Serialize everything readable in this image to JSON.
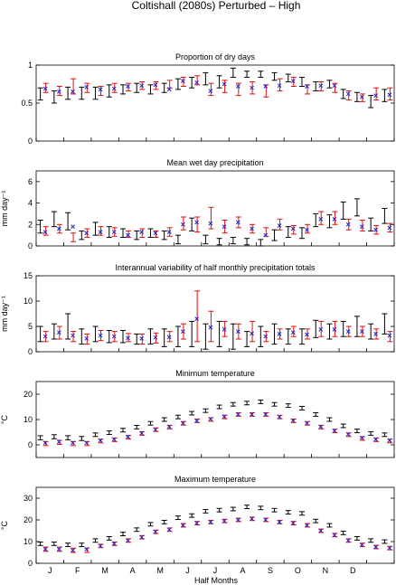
{
  "title": "Coltishall (2080s) Perturbed – High",
  "colors": {
    "black_series": "#000000",
    "red_series": "#dd1111",
    "blue_series": "#2222cc"
  },
  "xaxis": {
    "label": "Half Months",
    "month_labels": [
      "J",
      "F",
      "M",
      "A",
      "M",
      "J",
      "J",
      "A",
      "S",
      "O",
      "N",
      "D"
    ]
  },
  "chart_data": [
    {
      "type": "errorbar",
      "title": "Proportion of dry days",
      "ylabel": "",
      "ylim": [
        0,
        1
      ],
      "yticks": [
        0,
        0.5,
        1
      ],
      "ytick_labels": [
        "0",
        "0.5",
        "1"
      ],
      "series": [
        {
          "values": [
            0.62,
            0.58,
            0.63,
            0.63,
            0.63,
            0.66,
            0.68,
            0.7,
            0.68,
            0.7,
            0.75,
            0.77,
            0.82,
            0.78,
            0.9,
            0.88,
            0.88,
            0.85,
            0.83,
            0.78,
            0.72,
            0.75,
            0.62,
            0.58,
            0.52,
            0.6
          ],
          "low": [
            0.54,
            0.5,
            0.55,
            0.55,
            0.55,
            0.58,
            0.62,
            0.64,
            0.62,
            0.64,
            0.68,
            0.7,
            0.74,
            0.7,
            0.84,
            0.84,
            0.84,
            0.8,
            0.78,
            0.72,
            0.66,
            0.7,
            0.56,
            0.52,
            0.44,
            0.52
          ],
          "high": [
            0.7,
            0.66,
            0.71,
            0.71,
            0.71,
            0.74,
            0.74,
            0.76,
            0.74,
            0.76,
            0.82,
            0.84,
            0.9,
            0.86,
            0.96,
            0.92,
            0.92,
            0.9,
            0.88,
            0.84,
            0.78,
            0.8,
            0.68,
            0.64,
            0.6,
            0.68
          ]
        },
        {
          "values": [
            0.7,
            0.66,
            0.72,
            0.7,
            0.66,
            0.7,
            0.71,
            0.73,
            0.73,
            0.75,
            0.78,
            0.8,
            0.68,
            0.72,
            0.68,
            0.7,
            0.66,
            0.74,
            0.78,
            0.68,
            0.72,
            0.7,
            0.6,
            0.57,
            0.62,
            0.62
          ],
          "low": [
            0.64,
            0.6,
            0.62,
            0.64,
            0.6,
            0.64,
            0.66,
            0.68,
            0.68,
            0.7,
            0.72,
            0.74,
            0.6,
            0.64,
            0.6,
            0.62,
            0.58,
            0.66,
            0.72,
            0.62,
            0.66,
            0.64,
            0.54,
            0.52,
            0.54,
            0.54
          ],
          "high": [
            0.76,
            0.72,
            0.82,
            0.76,
            0.72,
            0.76,
            0.76,
            0.78,
            0.78,
            0.8,
            0.84,
            0.86,
            0.76,
            0.8,
            0.76,
            0.78,
            0.74,
            0.82,
            0.84,
            0.74,
            0.78,
            0.76,
            0.66,
            0.62,
            0.7,
            0.7
          ]
        },
        {
          "values": [
            0.69,
            0.65,
            0.65,
            0.71,
            0.68,
            0.69,
            0.72,
            0.73,
            0.74,
            0.68,
            0.79,
            0.77,
            0.66,
            0.75,
            0.72,
            0.7,
            0.72,
            0.73,
            0.79,
            0.72,
            0.73,
            0.73,
            0.62,
            0.58,
            0.6,
            0.61
          ]
        }
      ]
    },
    {
      "type": "errorbar",
      "title": "Mean wet day precipitation",
      "ylabel": "mm day⁻¹",
      "ylim": [
        0,
        7
      ],
      "yticks": [
        0,
        2,
        4,
        6
      ],
      "ytick_labels": [
        "0",
        "2",
        "4",
        "6"
      ],
      "series": [
        {
          "values": [
            1.8,
            2.5,
            2.3,
            1.0,
            1.6,
            1.3,
            1.2,
            1.0,
            1.2,
            1.0,
            0.6,
            2.0,
            0.6,
            0.4,
            0.5,
            0.4,
            0.3,
            1.0,
            1.3,
            1.2,
            2.4,
            2.3,
            3.3,
            3.6,
            2.0,
            2.8
          ],
          "low": [
            1.2,
            1.8,
            1.5,
            0.6,
            1.0,
            0.8,
            0.8,
            0.6,
            0.8,
            0.6,
            0.2,
            1.4,
            0.2,
            0.1,
            0.2,
            0.1,
            0.0,
            0.5,
            0.8,
            0.7,
            1.8,
            1.7,
            2.5,
            2.8,
            1.4,
            2.1
          ],
          "high": [
            2.4,
            3.2,
            3.1,
            1.4,
            2.2,
            1.8,
            1.6,
            1.4,
            1.6,
            1.4,
            1.0,
            2.6,
            1.0,
            0.7,
            0.8,
            0.7,
            0.6,
            1.5,
            1.8,
            1.7,
            3.0,
            2.9,
            4.1,
            4.4,
            2.6,
            3.5
          ]
        },
        {
          "values": [
            1.4,
            1.6,
            0.8,
            1.2,
            1.4,
            1.3,
            1.1,
            1.2,
            1.1,
            1.3,
            2.1,
            2.0,
            2.6,
            1.8,
            2.2,
            1.6,
            1.3,
            2.0,
            1.5,
            1.6,
            2.6,
            2.6,
            2.0,
            1.9,
            1.5,
            1.7
          ],
          "low": [
            1.0,
            1.2,
            0.4,
            0.8,
            1.0,
            0.9,
            0.8,
            0.8,
            0.8,
            0.9,
            1.5,
            1.3,
            1.6,
            1.2,
            1.7,
            1.2,
            0.9,
            1.5,
            1.1,
            1.2,
            2.0,
            2.0,
            1.5,
            1.4,
            1.1,
            1.3
          ],
          "high": [
            1.8,
            2.0,
            1.2,
            1.6,
            1.8,
            1.7,
            1.4,
            1.6,
            1.4,
            1.7,
            2.7,
            2.7,
            3.6,
            2.4,
            2.7,
            2.0,
            1.7,
            2.5,
            1.9,
            2.0,
            3.2,
            3.2,
            2.5,
            2.4,
            1.9,
            2.1
          ]
        },
        {
          "values": [
            1.3,
            1.6,
            1.8,
            1.2,
            1.3,
            1.3,
            1.0,
            1.3,
            1.2,
            1.3,
            2.0,
            2.2,
            2.1,
            1.8,
            2.2,
            1.6,
            1.0,
            1.9,
            1.6,
            1.5,
            2.5,
            2.5,
            2.0,
            1.8,
            1.5,
            1.7
          ]
        }
      ]
    },
    {
      "type": "errorbar",
      "title": "Interannual variability of half monthly precipitation totals",
      "ylabel": "mm day⁻¹",
      "ylim": [
        0,
        15
      ],
      "yticks": [
        0,
        5,
        10,
        15
      ],
      "ytick_labels": [
        "0",
        "5",
        "10",
        "15"
      ],
      "series": [
        {
          "values": [
            3.5,
            4.0,
            5.0,
            3.0,
            3.5,
            3.0,
            3.0,
            2.5,
            3.0,
            2.8,
            3.0,
            3.5,
            3.0,
            3.5,
            3.0,
            2.5,
            3.0,
            3.5,
            3.0,
            3.0,
            4.5,
            4.0,
            4.5,
            5.0,
            4.0,
            5.5
          ],
          "low": [
            2.0,
            2.5,
            2.5,
            1.5,
            2.0,
            1.8,
            1.8,
            1.5,
            1.5,
            1.0,
            1.0,
            1.0,
            0.5,
            1.0,
            0.5,
            1.0,
            1.0,
            1.5,
            1.5,
            1.5,
            2.8,
            2.5,
            3.0,
            3.0,
            2.5,
            3.5
          ],
          "high": [
            5.0,
            5.5,
            7.5,
            4.5,
            5.0,
            4.2,
            4.2,
            3.5,
            4.5,
            4.5,
            5.0,
            6.0,
            5.5,
            6.0,
            5.5,
            4.0,
            5.0,
            5.5,
            4.5,
            4.5,
            6.2,
            5.5,
            6.0,
            7.0,
            5.5,
            7.5
          ]
        },
        {
          "values": [
            3.0,
            3.8,
            3.0,
            2.5,
            3.2,
            3.0,
            2.8,
            2.5,
            2.7,
            3.0,
            4.0,
            7.0,
            5.0,
            4.5,
            4.0,
            3.5,
            3.0,
            3.5,
            4.0,
            3.5,
            4.5,
            4.5,
            4.0,
            4.0,
            3.5,
            3.0
          ],
          "low": [
            2.0,
            2.5,
            2.0,
            1.5,
            2.2,
            2.0,
            2.0,
            1.5,
            1.7,
            2.0,
            2.5,
            2.0,
            2.0,
            3.0,
            2.5,
            2.0,
            2.0,
            2.5,
            3.0,
            2.5,
            3.0,
            3.0,
            3.0,
            3.0,
            2.5,
            2.0
          ],
          "high": [
            4.0,
            5.0,
            4.0,
            3.5,
            4.2,
            4.0,
            3.6,
            3.5,
            3.7,
            4.0,
            5.5,
            12.0,
            8.0,
            6.0,
            5.5,
            6.0,
            4.0,
            4.5,
            5.0,
            4.5,
            6.0,
            6.0,
            5.0,
            5.0,
            4.5,
            4.0
          ]
        },
        {
          "values": [
            3.0,
            3.8,
            3.2,
            2.6,
            3.2,
            3.0,
            2.7,
            2.6,
            2.8,
            2.9,
            4.0,
            6.5,
            4.8,
            4.4,
            4.0,
            3.6,
            3.0,
            3.5,
            3.8,
            3.4,
            4.4,
            4.4,
            4.0,
            4.0,
            3.5,
            3.2
          ]
        }
      ]
    },
    {
      "type": "errorbar",
      "title": "Minimum temperature",
      "ylabel": "°C",
      "ylim": [
        -5,
        25
      ],
      "yticks": [
        0,
        10,
        20
      ],
      "ytick_labels": [
        "0",
        "10",
        "20"
      ],
      "series": [
        {
          "values": [
            2.8,
            3.2,
            2.8,
            2.5,
            4.0,
            4.8,
            5.8,
            7.0,
            8.5,
            10.0,
            11.0,
            12.5,
            13.5,
            15.0,
            16.0,
            16.5,
            17.0,
            16.0,
            15.5,
            14.5,
            12.0,
            10.0,
            7.5,
            5.5,
            4.5,
            4.0
          ],
          "low": [
            2.0,
            2.4,
            2.0,
            1.7,
            3.3,
            4.1,
            5.1,
            6.3,
            7.8,
            9.3,
            10.3,
            11.8,
            12.8,
            14.3,
            15.3,
            15.8,
            16.3,
            15.3,
            14.8,
            13.8,
            11.3,
            9.3,
            6.8,
            4.8,
            3.8,
            3.3
          ],
          "high": [
            3.6,
            4.0,
            3.6,
            3.3,
            4.7,
            5.5,
            6.5,
            7.7,
            9.2,
            10.7,
            11.7,
            13.2,
            14.2,
            15.7,
            16.7,
            17.2,
            17.7,
            16.7,
            16.2,
            15.2,
            12.7,
            10.7,
            8.2,
            6.2,
            5.2,
            4.7
          ]
        },
        {
          "values": [
            0.5,
            1.0,
            0.5,
            0.5,
            1.5,
            2.0,
            3.0,
            4.5,
            6.0,
            7.0,
            8.5,
            9.5,
            10.0,
            11.0,
            12.0,
            12.0,
            12.0,
            11.0,
            9.5,
            8.5,
            7.0,
            5.5,
            4.0,
            2.5,
            2.0,
            1.5
          ],
          "low": [
            -0.3,
            0.2,
            -0.3,
            -0.3,
            0.8,
            1.3,
            2.3,
            3.8,
            5.3,
            6.3,
            7.8,
            8.8,
            9.3,
            10.3,
            11.3,
            11.3,
            11.3,
            10.3,
            8.8,
            7.8,
            6.3,
            4.8,
            3.3,
            1.8,
            1.3,
            0.8
          ],
          "high": [
            1.3,
            1.8,
            1.3,
            1.3,
            2.2,
            2.7,
            3.7,
            5.2,
            6.7,
            7.7,
            9.2,
            10.2,
            10.7,
            11.7,
            12.7,
            12.7,
            12.7,
            11.7,
            10.2,
            9.2,
            7.7,
            6.2,
            4.7,
            3.2,
            2.7,
            2.2
          ]
        },
        {
          "values": [
            0.8,
            1.2,
            0.8,
            0.8,
            1.8,
            2.2,
            3.2,
            4.6,
            6.0,
            7.2,
            8.5,
            9.5,
            10.2,
            11.2,
            12.0,
            12.0,
            12.0,
            11.0,
            9.6,
            8.6,
            7.2,
            5.6,
            4.2,
            2.8,
            2.2,
            1.8
          ]
        }
      ]
    },
    {
      "type": "errorbar",
      "title": "Maximum temperature",
      "ylabel": "°C",
      "ylim": [
        0,
        35
      ],
      "yticks": [
        0,
        10,
        20,
        30
      ],
      "ytick_labels": [
        "0",
        "10",
        "20",
        "30"
      ],
      "series": [
        {
          "values": [
            9.0,
            9.0,
            8.5,
            8.5,
            10.5,
            11.5,
            13.5,
            15.5,
            18.0,
            19.0,
            21.0,
            22.0,
            24.0,
            24.5,
            25.0,
            26.0,
            25.5,
            24.5,
            23.5,
            23.0,
            19.5,
            17.5,
            14.0,
            11.5,
            10.5,
            10.0
          ],
          "low": [
            8.2,
            8.2,
            7.7,
            7.7,
            9.7,
            10.7,
            12.7,
            14.7,
            17.2,
            18.2,
            20.2,
            21.2,
            23.2,
            23.7,
            24.2,
            25.2,
            24.7,
            23.7,
            22.7,
            22.2,
            18.7,
            16.7,
            13.2,
            10.7,
            9.7,
            9.2
          ],
          "high": [
            9.8,
            9.8,
            9.3,
            9.3,
            11.3,
            12.3,
            14.3,
            16.3,
            18.8,
            19.8,
            21.8,
            22.8,
            24.8,
            25.3,
            25.8,
            26.8,
            26.3,
            25.3,
            24.3,
            23.8,
            20.3,
            18.3,
            14.8,
            12.3,
            11.3,
            10.8
          ]
        },
        {
          "values": [
            6.5,
            6.5,
            6.0,
            6.0,
            8.0,
            9.0,
            10.5,
            12.0,
            14.5,
            15.5,
            17.5,
            18.5,
            19.0,
            19.5,
            20.0,
            20.5,
            20.0,
            19.0,
            18.5,
            17.5,
            15.0,
            13.0,
            10.5,
            8.5,
            7.5,
            7.0
          ],
          "low": [
            5.5,
            5.5,
            5.0,
            5.0,
            7.2,
            8.2,
            9.7,
            11.2,
            13.7,
            14.7,
            16.7,
            17.7,
            18.2,
            18.7,
            19.2,
            19.7,
            19.2,
            18.2,
            17.7,
            16.7,
            14.2,
            12.2,
            9.7,
            7.7,
            6.7,
            6.2
          ],
          "high": [
            7.5,
            7.5,
            7.0,
            7.0,
            8.8,
            9.8,
            11.3,
            12.8,
            15.3,
            16.3,
            18.3,
            19.3,
            19.8,
            20.3,
            20.8,
            21.3,
            20.8,
            19.8,
            19.3,
            18.3,
            15.8,
            13.8,
            11.3,
            9.3,
            8.3,
            7.8
          ]
        },
        {
          "values": [
            6.5,
            6.5,
            6.0,
            6.5,
            8.0,
            9.0,
            10.5,
            12.0,
            14.5,
            15.5,
            17.5,
            18.5,
            19.0,
            19.5,
            20.0,
            20.5,
            20.0,
            19.0,
            18.5,
            17.5,
            15.0,
            13.0,
            10.5,
            8.5,
            7.5,
            7.0
          ]
        }
      ]
    }
  ]
}
